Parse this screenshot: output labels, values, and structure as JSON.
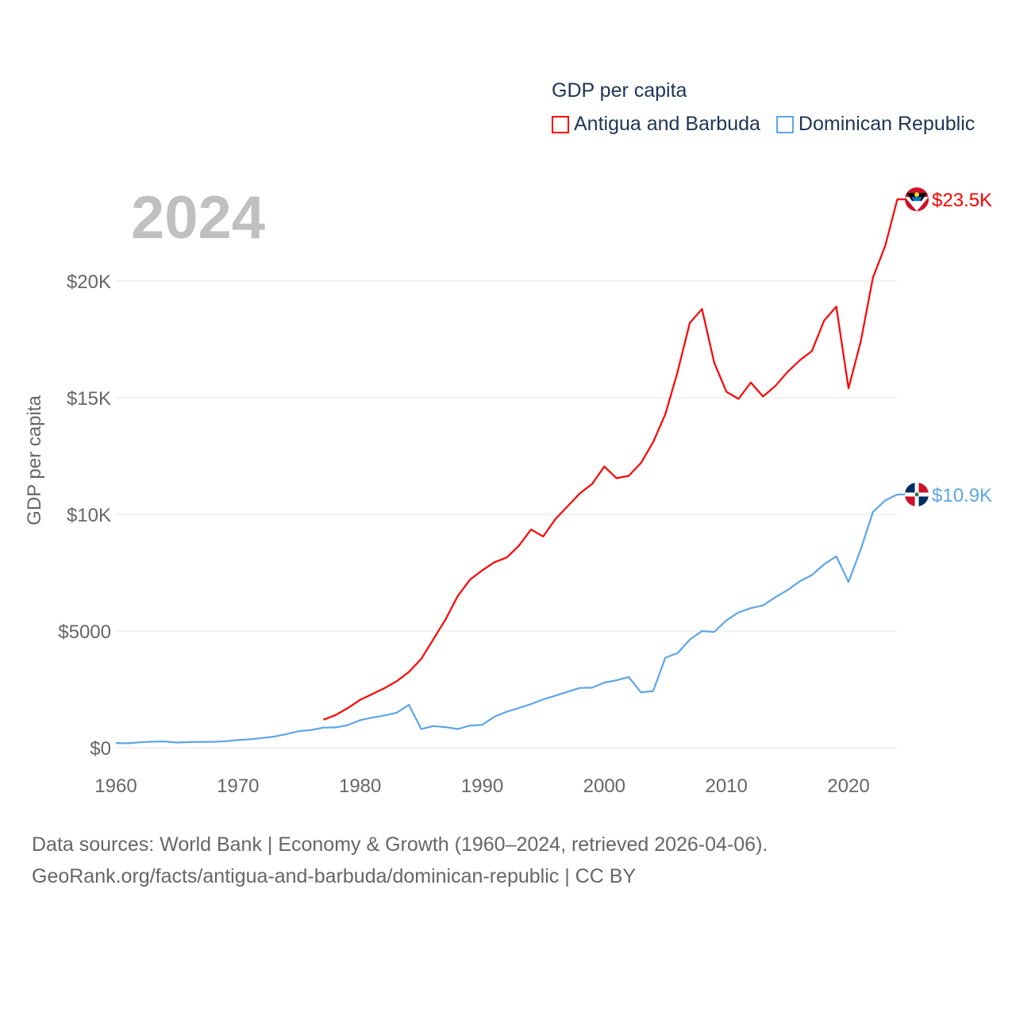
{
  "chart_data": {
    "type": "line",
    "title": "GDP per capita",
    "ylabel": "GDP per capita",
    "xlabel": "",
    "year_label": "2024",
    "xlim": [
      1960,
      2024
    ],
    "ylim": [
      0,
      23500
    ],
    "x_ticks": [
      1960,
      1970,
      1980,
      1990,
      2000,
      2010,
      2020
    ],
    "y_ticks": [
      0,
      5000,
      10000,
      15000,
      20000
    ],
    "y_tick_labels": [
      "$0",
      "$5000",
      "$10K",
      "$15K",
      "$20K"
    ],
    "grid": true,
    "legend_position": "top-right",
    "series": [
      {
        "name": "Antigua and Barbuda",
        "color": "#ff0000",
        "end_label": "$23.5K",
        "flag_icon": "antigua-and-barbuda-flag",
        "x": [
          1977,
          1978,
          1979,
          1980,
          1981,
          1982,
          1983,
          1984,
          1985,
          1986,
          1987,
          1988,
          1989,
          1990,
          1991,
          1992,
          1993,
          1994,
          1995,
          1996,
          1997,
          1998,
          1999,
          2000,
          2001,
          2002,
          2003,
          2004,
          2005,
          2006,
          2007,
          2008,
          2009,
          2010,
          2011,
          2012,
          2013,
          2014,
          2015,
          2016,
          2017,
          2018,
          2019,
          2020,
          2021,
          2022,
          2023,
          2024
        ],
        "values": [
          1200,
          1400,
          1700,
          2050,
          2300,
          2550,
          2850,
          3250,
          3800,
          4650,
          5500,
          6500,
          7200,
          7600,
          7950,
          8150,
          8650,
          9350,
          9050,
          9800,
          10350,
          10900,
          11300,
          12050,
          11550,
          11650,
          12200,
          13100,
          14300,
          16100,
          18200,
          18800,
          16500,
          15250,
          14950,
          15650,
          15050,
          15500,
          16100,
          16600,
          17000,
          18300,
          18900,
          15400,
          17400,
          20150,
          21500,
          23500
        ]
      },
      {
        "name": "Dominican Republic",
        "color": "#5da5ea",
        "end_label": "$10.9K",
        "flag_icon": "dominican-republic-flag",
        "x": [
          1960,
          1961,
          1962,
          1963,
          1964,
          1965,
          1966,
          1967,
          1968,
          1969,
          1970,
          1971,
          1972,
          1973,
          1974,
          1975,
          1976,
          1977,
          1978,
          1979,
          1980,
          1981,
          1982,
          1983,
          1984,
          1985,
          1986,
          1987,
          1988,
          1989,
          1990,
          1991,
          1992,
          1993,
          1994,
          1995,
          1996,
          1997,
          1998,
          1999,
          2000,
          2001,
          2002,
          2003,
          2004,
          2005,
          2006,
          2007,
          2008,
          2009,
          2010,
          2011,
          2012,
          2013,
          2014,
          2015,
          2016,
          2017,
          2018,
          2019,
          2020,
          2021,
          2022,
          2023,
          2024
        ],
        "values": [
          200,
          190,
          230,
          260,
          270,
          220,
          240,
          250,
          250,
          280,
          330,
          360,
          420,
          480,
          590,
          710,
          760,
          860,
          870,
          970,
          1180,
          1290,
          1380,
          1500,
          1840,
          800,
          930,
          880,
          800,
          950,
          980,
          1330,
          1540,
          1700,
          1870,
          2070,
          2230,
          2400,
          2560,
          2570,
          2790,
          2890,
          3030,
          2370,
          2430,
          3860,
          4050,
          4630,
          5000,
          4960,
          5460,
          5800,
          5980,
          6100,
          6450,
          6750,
          7130,
          7400,
          7860,
          8200,
          7100,
          8500,
          10100,
          10600,
          10850
        ]
      }
    ]
  },
  "footer": {
    "line1": "Data sources: World Bank | Economy & Growth (1960–2024, retrieved 2026-04-06).",
    "line2": "GeoRank.org/facts/antigua-and-barbuda/dominican-republic | CC BY"
  }
}
